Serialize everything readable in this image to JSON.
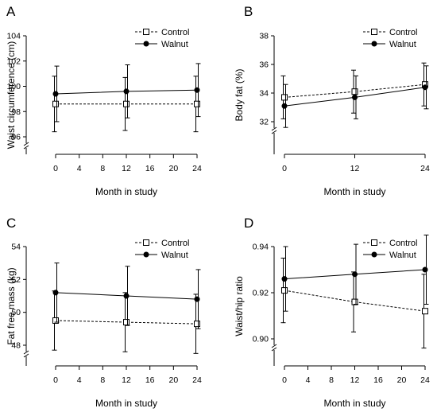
{
  "chart_data": [
    {
      "type": "line",
      "panel_label": "A",
      "xlabel": "Month in study",
      "ylabel": "Waist circumference (cm)",
      "xlim": [
        0,
        24
      ],
      "ylim": [
        96,
        104
      ],
      "xticks": [
        0,
        4,
        8,
        12,
        16,
        20,
        24
      ],
      "yticks": [
        96,
        98,
        100,
        102,
        104
      ],
      "y_axis_break": true,
      "legend_position": "top-right",
      "series": [
        {
          "name": "Control",
          "style": "dashed",
          "marker": "open-square",
          "x": [
            0,
            12,
            24
          ],
          "values": [
            98.6,
            98.6,
            98.6
          ],
          "error": [
            2.2,
            2.1,
            2.2
          ]
        },
        {
          "name": "Walnut",
          "style": "solid",
          "marker": "filled-circle",
          "x": [
            0,
            12,
            24
          ],
          "values": [
            99.4,
            99.6,
            99.7
          ],
          "error": [
            2.2,
            2.1,
            2.1
          ]
        }
      ]
    },
    {
      "type": "line",
      "panel_label": "B",
      "xlabel": "Month in study",
      "ylabel": "Body fat (%)",
      "xlim": [
        0,
        24
      ],
      "ylim": [
        32,
        38
      ],
      "xticks": [
        0,
        12,
        24
      ],
      "yticks": [
        32,
        34,
        36,
        38
      ],
      "y_axis_break": true,
      "legend_position": "top-right",
      "series": [
        {
          "name": "Control",
          "style": "dashed",
          "marker": "open-square",
          "x": [
            0,
            12,
            24
          ],
          "values": [
            33.7,
            34.1,
            34.6
          ],
          "error": [
            1.5,
            1.5,
            1.5
          ]
        },
        {
          "name": "Walnut",
          "style": "solid",
          "marker": "filled-circle",
          "x": [
            0,
            12,
            24
          ],
          "values": [
            33.1,
            33.7,
            34.4
          ],
          "error": [
            1.5,
            1.5,
            1.5
          ]
        }
      ]
    },
    {
      "type": "line",
      "panel_label": "C",
      "xlabel": "Month in study",
      "ylabel": "Fat free mass (kg)",
      "xlim": [
        0,
        24
      ],
      "ylim": [
        48,
        54
      ],
      "xticks": [
        0,
        4,
        8,
        12,
        16,
        20,
        24
      ],
      "yticks": [
        48,
        50,
        52,
        54
      ],
      "y_axis_break": true,
      "legend_position": "top-right",
      "series": [
        {
          "name": "Control",
          "style": "dashed",
          "marker": "open-square",
          "x": [
            0,
            12,
            24
          ],
          "values": [
            49.5,
            49.4,
            49.3
          ],
          "error": [
            1.8,
            1.8,
            1.8
          ]
        },
        {
          "name": "Walnut",
          "style": "solid",
          "marker": "filled-circle",
          "x": [
            0,
            12,
            24
          ],
          "values": [
            51.2,
            51.0,
            50.8
          ],
          "error": [
            1.8,
            1.8,
            1.8
          ]
        }
      ]
    },
    {
      "type": "line",
      "panel_label": "D",
      "xlabel": "Month in study",
      "ylabel": "Waist/hip ratio",
      "xlim": [
        0,
        24
      ],
      "ylim": [
        0.9,
        0.94
      ],
      "xticks": [
        0,
        4,
        8,
        12,
        16,
        20,
        24
      ],
      "yticks": [
        0.9,
        0.92,
        0.94
      ],
      "y_axis_break": true,
      "legend_position": "top-right",
      "series": [
        {
          "name": "Control",
          "style": "dashed",
          "marker": "open-square",
          "x": [
            0,
            12,
            24
          ],
          "values": [
            0.921,
            0.916,
            0.912
          ],
          "error": [
            0.014,
            0.013,
            0.016
          ]
        },
        {
          "name": "Walnut",
          "style": "solid",
          "marker": "filled-circle",
          "x": [
            0,
            12,
            24
          ],
          "values": [
            0.926,
            0.928,
            0.93
          ],
          "error": [
            0.014,
            0.013,
            0.015
          ]
        }
      ]
    }
  ]
}
